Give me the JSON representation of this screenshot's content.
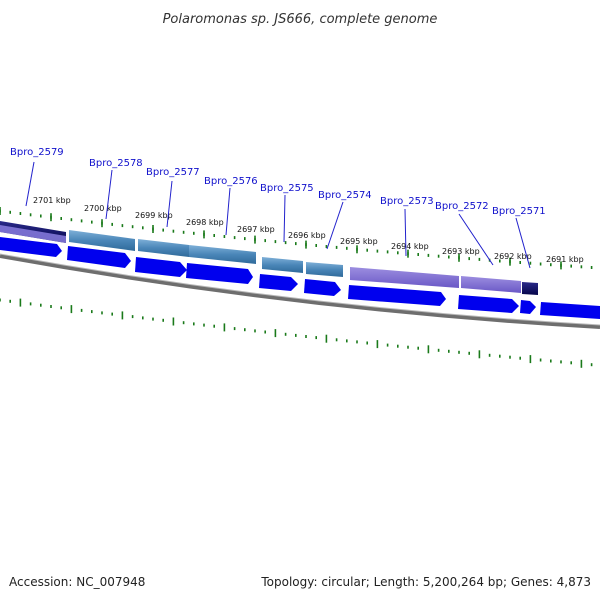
{
  "title": "Polaromonas sp. JS666, complete genome",
  "accession": "Accession: NC_007948",
  "summary": "Topology: circular; Length: 5,200,264 bp; Genes: 4,873",
  "colors": {
    "gene_link": "#1111cc",
    "cds_forward": "#0000ee",
    "tick": "#1a7a1a",
    "backbone": "#888888"
  },
  "kbp_labels": [
    "2701 kbp",
    "2700 kbp",
    "2699 kbp",
    "2698 kbp",
    "2697 kbp",
    "2696 kbp",
    "2695 kbp",
    "2694 kbp",
    "2693 kbp",
    "2692 kbp",
    "2691 kbp"
  ],
  "genes": [
    "Bpro_2579",
    "Bpro_2578",
    "Bpro_2577",
    "Bpro_2576",
    "Bpro_2575",
    "Bpro_2574",
    "Bpro_2573",
    "Bpro_2572",
    "Bpro_2571"
  ]
}
